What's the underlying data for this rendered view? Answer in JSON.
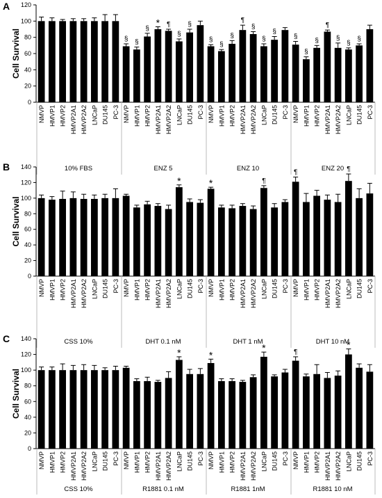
{
  "chart_data": [
    {
      "panel": "A",
      "type": "bar",
      "ylabel": "Cell Survival",
      "ylim": [
        0,
        120
      ],
      "yticks": [
        0,
        20,
        40,
        60,
        80,
        100,
        120
      ],
      "groups": [
        {
          "label": "10% FBS",
          "categories": [
            "NMVP",
            "HMVP1",
            "HMVP2",
            "HMVP2A1",
            "HMVP2A2",
            "LNCaP",
            "DU145",
            "PC-3"
          ],
          "values": [
            100,
            100,
            100,
            100,
            100,
            100,
            100,
            100
          ],
          "errors": [
            5,
            4,
            2,
            3,
            3,
            4,
            8,
            8
          ],
          "marks": [
            "",
            "",
            "",
            "",
            "",
            "",
            "",
            ""
          ]
        },
        {
          "label": "ENZ 5",
          "categories": [
            "NMVP",
            "HMVP1",
            "HMVP2",
            "HMVP2A1",
            "HMVP2A2",
            "LNCaP",
            "DU145",
            "PC-3"
          ],
          "values": [
            69,
            65,
            81,
            90,
            88,
            75,
            86,
            95
          ],
          "errors": [
            3,
            3,
            4,
            3,
            2,
            3,
            4,
            5
          ],
          "marks": [
            "§",
            "§",
            "§",
            "*",
            "¶",
            "§",
            "§",
            ""
          ]
        },
        {
          "label": "ENZ 10",
          "categories": [
            "NMVP",
            "HMVP1",
            "HMVP2",
            "HMVP2A1",
            "HMVP2A2",
            "LNCaP",
            "DU145",
            "PC-3"
          ],
          "values": [
            69,
            63,
            72,
            89,
            84,
            69,
            77,
            89
          ],
          "errors": [
            2,
            2,
            4,
            6,
            3,
            3,
            4,
            3
          ],
          "marks": [
            "§",
            "§",
            "§",
            "¶",
            "§",
            "§",
            "§",
            ""
          ]
        },
        {
          "label": "ENZ 20",
          "categories": [
            "NMVP",
            "HMVP1",
            "HMVP2",
            "HMVP2A1",
            "HMVP2A2",
            "LNCaP",
            "DU145",
            "PC-3"
          ],
          "values": [
            71,
            53,
            67,
            87,
            67,
            65,
            70,
            90
          ],
          "errors": [
            4,
            3,
            3,
            2,
            6,
            2,
            2,
            5
          ],
          "marks": [
            "§",
            "§",
            "§",
            "¶",
            "§",
            "§",
            "§",
            ""
          ]
        }
      ]
    },
    {
      "panel": "B",
      "type": "bar",
      "ylabel": "Cell Survival",
      "ylim": [
        0,
        140
      ],
      "yticks": [
        0,
        20,
        40,
        60,
        80,
        100,
        120,
        140
      ],
      "groups": [
        {
          "label": "CSS 10%",
          "categories": [
            "NMVP",
            "HMVP1",
            "HMVP2",
            "HMVP2A1",
            "HMVP2A2",
            "LNCaP",
            "DU145",
            "PC-3"
          ],
          "values": [
            100,
            98,
            99,
            100,
            99,
            99,
            100,
            100
          ],
          "errors": [
            4,
            4,
            10,
            8,
            6,
            5,
            5,
            12
          ],
          "marks": [
            "",
            "",
            "",
            "",
            "",
            "",
            "",
            ""
          ]
        },
        {
          "label": "DHT 0.1 nM",
          "categories": [
            "NMVP",
            "HMVP1",
            "HMVP2",
            "HMVP2A1",
            "HMVP2A2",
            "LNCaP",
            "DU145",
            "PC-3"
          ],
          "values": [
            103,
            88,
            92,
            90,
            86,
            114,
            95,
            94
          ],
          "errors": [
            2,
            3,
            4,
            3,
            5,
            3,
            4,
            4
          ],
          "marks": [
            "",
            "",
            "",
            "",
            "",
            "*",
            "",
            ""
          ]
        },
        {
          "label": "DHT 1 nM",
          "categories": [
            "NMVP",
            "HMVP1",
            "HMVP2",
            "HMVP2A1",
            "HMVP2A2",
            "LNCaP",
            "DU145",
            "PC-3"
          ],
          "values": [
            112,
            88,
            87,
            90,
            86,
            113,
            88,
            95
          ],
          "errors": [
            2,
            3,
            4,
            3,
            4,
            3,
            5,
            3
          ],
          "marks": [
            "*",
            "",
            "",
            "",
            "",
            "¶",
            "",
            ""
          ]
        },
        {
          "label": "DHT 10 nM",
          "categories": [
            "NMVP",
            "HMVP1",
            "HMVP2",
            "HMVP2A1",
            "HMVP2A2",
            "LNCaP",
            "DU145",
            "PC-3"
          ],
          "values": [
            121,
            95,
            103,
            98,
            95,
            122,
            100,
            106
          ],
          "errors": [
            6,
            11,
            7,
            6,
            10,
            9,
            12,
            13
          ],
          "marks": [
            "¶",
            "",
            "",
            "",
            "",
            "¶",
            "",
            ""
          ]
        }
      ]
    },
    {
      "panel": "C",
      "type": "bar",
      "ylabel": "Cell Survival",
      "ylim": [
        0,
        140
      ],
      "yticks": [
        0,
        20,
        40,
        60,
        80,
        100,
        120,
        140
      ],
      "groups": [
        {
          "label": "CSS 10%",
          "categories": [
            "NMVP",
            "HMVP1",
            "HMVP2",
            "HMVP2A1",
            "HMVP2A2",
            "LNCaP",
            "DU145",
            "PC-3"
          ],
          "values": [
            100,
            100,
            100,
            100,
            100,
            100,
            100,
            100
          ],
          "errors": [
            4,
            4,
            8,
            6,
            7,
            6,
            3,
            5
          ],
          "marks": [
            "",
            "",
            "",
            "",
            "",
            "",
            "",
            ""
          ]
        },
        {
          "label": "R1881 0.1 nM",
          "categories": [
            "NMVP",
            "HMVP1",
            "HMVP2",
            "HMVP2A1",
            "HMVP2A2",
            "LNCaP",
            "DU145",
            "PC-3"
          ],
          "values": [
            103,
            86,
            86,
            85,
            90,
            113,
            95,
            95
          ],
          "errors": [
            2,
            3,
            5,
            2,
            8,
            4,
            6,
            7
          ],
          "marks": [
            "",
            "",
            "",
            "",
            "",
            "*",
            "",
            ""
          ]
        },
        {
          "label": "R1881 1nM",
          "categories": [
            "NMVP",
            "HMVP1",
            "HMVP2",
            "HMVP2A1",
            "HMVP2A2",
            "LNCaP",
            "DU145",
            "PC-3"
          ],
          "values": [
            109,
            86,
            86,
            85,
            91,
            117,
            92,
            97
          ],
          "errors": [
            5,
            3,
            3,
            2,
            3,
            6,
            2,
            4
          ],
          "marks": [
            "*",
            "",
            "",
            "",
            "",
            "*",
            "",
            ""
          ]
        },
        {
          "label": "R1881 10 nM",
          "categories": [
            "NMVP",
            "HMVP1",
            "HMVP2",
            "HMVP2A1",
            "HMVP2A2",
            "LNCaP",
            "DU145",
            "PC-3"
          ],
          "values": [
            112,
            92,
            95,
            90,
            93,
            120,
            103,
            98
          ],
          "errors": [
            5,
            3,
            12,
            7,
            6,
            7,
            5,
            9
          ],
          "marks": [
            "¶",
            "",
            "",
            "",
            "",
            "*",
            "",
            ""
          ]
        }
      ]
    }
  ]
}
